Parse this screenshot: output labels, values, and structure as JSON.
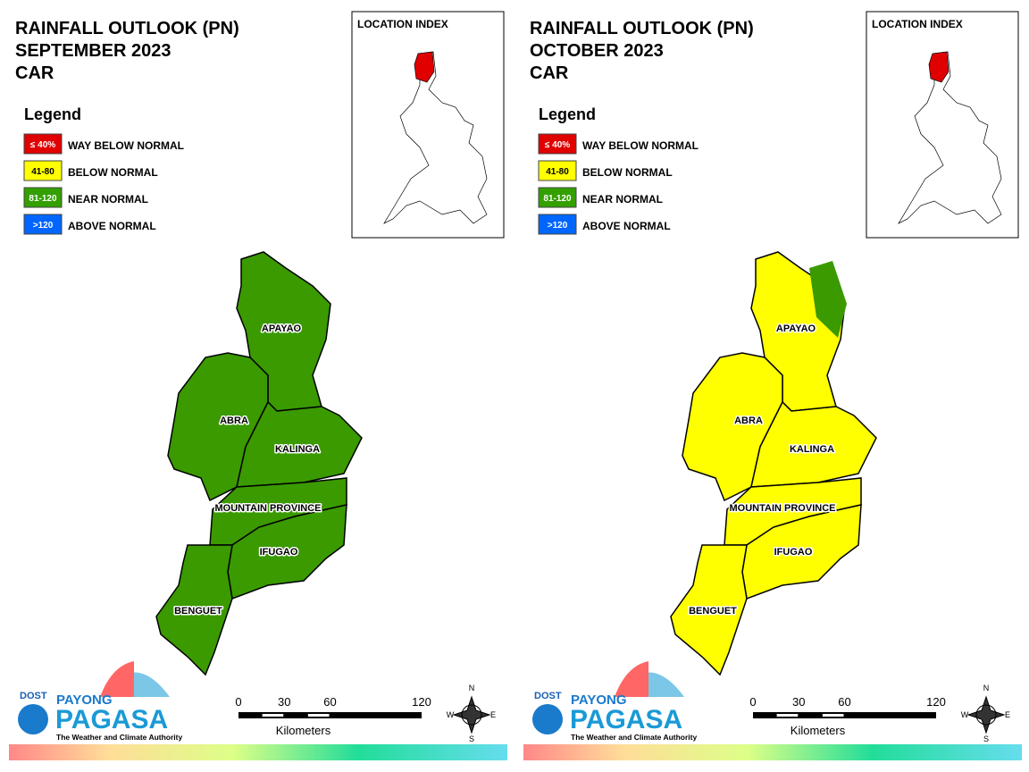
{
  "panels": [
    {
      "title": [
        "RAINFALL OUTLOOK (PN)",
        "SEPTEMBER 2023",
        "CAR"
      ],
      "legend": {
        "title": "Legend",
        "items": [
          {
            "range": "≤ 40%",
            "label": "WAY BELOW NORMAL",
            "color": "#e00000"
          },
          {
            "range": "41-80",
            "label": "BELOW NORMAL",
            "color": "#ffff00"
          },
          {
            "range": "81-120",
            "label": "NEAR NORMAL",
            "color": "#33a000"
          },
          {
            "range": ">120",
            "label": "ABOVE NORMAL",
            "color": "#0066ff"
          }
        ]
      },
      "location_index": "LOCATION INDEX",
      "provinces": [
        {
          "name": "APAYAO",
          "color": "#3a9a00"
        },
        {
          "name": "ABRA",
          "color": "#3a9a00"
        },
        {
          "name": "KALINGA",
          "color": "#3a9a00"
        },
        {
          "name": "MOUNTAIN PROVINCE",
          "color": "#3a9a00"
        },
        {
          "name": "IFUGAO",
          "color": "#3a9a00"
        },
        {
          "name": "BENGUET",
          "color": "#3a9a00"
        }
      ],
      "scale": {
        "ticks": [
          0,
          30,
          60,
          120
        ],
        "unit": "Kilometers"
      },
      "compass": [
        "N",
        "E",
        "S",
        "W"
      ],
      "logo": [
        "DOST",
        "PAYONG",
        "PAGASA",
        "The Weather and Climate Authority"
      ]
    },
    {
      "title": [
        "RAINFALL OUTLOOK (PN)",
        "OCTOBER 2023",
        "CAR"
      ],
      "legend": {
        "title": "Legend",
        "items": [
          {
            "range": "≤ 40%",
            "label": "WAY BELOW NORMAL",
            "color": "#e00000"
          },
          {
            "range": "41-80",
            "label": "BELOW NORMAL",
            "color": "#ffff00"
          },
          {
            "range": "81-120",
            "label": "NEAR NORMAL",
            "color": "#33a000"
          },
          {
            "range": ">120",
            "label": "ABOVE NORMAL",
            "color": "#0066ff"
          }
        ]
      },
      "location_index": "LOCATION INDEX",
      "provinces": [
        {
          "name": "APAYAO",
          "color": "#ffff00",
          "patch_color": "#3a9a00"
        },
        {
          "name": "ABRA",
          "color": "#ffff00"
        },
        {
          "name": "KALINGA",
          "color": "#ffff00"
        },
        {
          "name": "MOUNTAIN PROVINCE",
          "color": "#ffff00"
        },
        {
          "name": "IFUGAO",
          "color": "#ffff00"
        },
        {
          "name": "BENGUET",
          "color": "#ffff00"
        }
      ],
      "scale": {
        "ticks": [
          0,
          30,
          60,
          120
        ],
        "unit": "Kilometers"
      },
      "compass": [
        "N",
        "E",
        "S",
        "W"
      ],
      "logo": [
        "DOST",
        "PAYONG",
        "PAGASA",
        "The Weather and Climate Authority"
      ]
    }
  ]
}
